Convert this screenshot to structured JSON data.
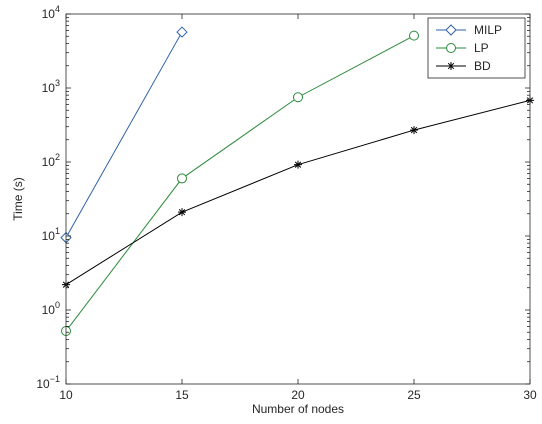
{
  "chart_data": {
    "type": "line",
    "title": "",
    "xlabel": "Number of nodes",
    "ylabel": "Time (s)",
    "xlim": [
      10,
      30
    ],
    "ylim": [
      0.1,
      10000
    ],
    "yscale": "log",
    "grid": false,
    "legend_position": "top-right",
    "x_ticks": [
      10,
      15,
      20,
      25,
      30
    ],
    "x_tick_labels": [
      "10",
      "15",
      "20",
      "25",
      "30"
    ],
    "y_ticks": [
      0.1,
      1,
      10,
      100,
      1000,
      10000
    ],
    "y_tick_exponents": [
      "−1",
      "0",
      "1",
      "2",
      "3",
      "4"
    ],
    "y_tick_base": "10",
    "series": [
      {
        "name": "MILP",
        "color": "#2e62a8",
        "marker": "diamond",
        "x": [
          10,
          15
        ],
        "y": [
          9.5,
          5700
        ]
      },
      {
        "name": "LP",
        "color": "#2a8a3a",
        "marker": "circle",
        "x": [
          10,
          15,
          20,
          25
        ],
        "y": [
          0.52,
          60,
          750,
          5100
        ]
      },
      {
        "name": "BD",
        "color": "#000000",
        "marker": "asterisk",
        "x": [
          10,
          15,
          20,
          25,
          30
        ],
        "y": [
          2.2,
          21,
          92,
          270,
          680
        ]
      }
    ]
  }
}
